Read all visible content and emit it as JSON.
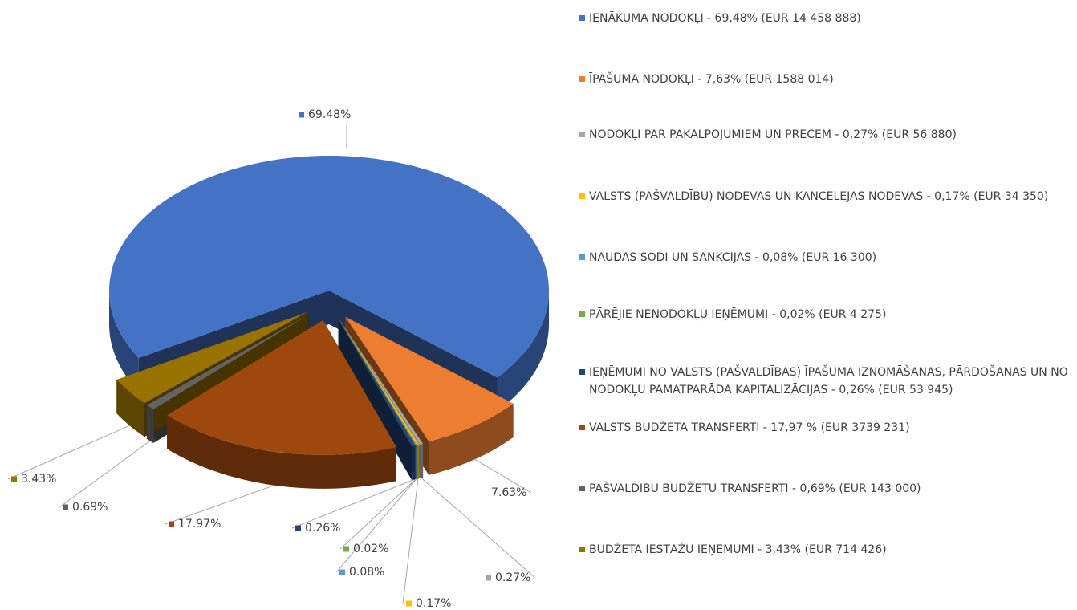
{
  "chart_data": {
    "type": "pie",
    "categories": [
      "IENĀKUMA NODOKĻI - 69,48% (EUR 14 458 888)",
      "ĪPAŠUMA NODOKĻI - 7,63% (EUR  1588 014)",
      "NODOKĻI PAR PAKALPOJUMIEM UN PRECĒM - 0,27% (EUR 56 880)",
      "VALSTS (PAŠVALDĪBU) NODEVAS UN KANCELEJAS NODEVAS - 0,17% (EUR 34 350)",
      "NAUDAS SODI UN SANKCIJAS - 0,08% (EUR 16 300)",
      "PĀRĒJIE NENODOKĻU IEŅĒMUMI - 0,02% (EUR 4 275)",
      "IEŅĒMUMI NO VALSTS (PAŠVALDĪBAS) ĪPAŠUMA IZNOMĀŠANAS, PĀRDOŠANAS UN NO NODOKĻU PAMATPARĀDA KAPITALIZĀCIJAS - 0,26% (EUR 53 945)",
      "VALSTS BUDŽETA TRANSFERTI - 17,97 % (EUR  3739 231)",
      "PAŠVALDĪBU BUDŽETU TRANSFERTI - 0,69% (EUR 143 000)",
      "BUDŽETA IESTĀŽU IEŅĒMUMI - 3,43% (EUR 714 426)"
    ],
    "values": [
      69.48,
      7.63,
      0.27,
      0.17,
      0.08,
      0.02,
      0.26,
      17.97,
      0.69,
      3.43
    ],
    "value_labels": [
      "69.48%",
      "7.63%",
      "0.27%",
      "0.17%",
      "0.08%",
      "0.02%",
      "0.26%",
      "17.97%",
      "0.69%",
      "3.43%"
    ],
    "colors": [
      "#4472c4",
      "#ed7d31",
      "#a5a5a5",
      "#ffc000",
      "#5b9bd5",
      "#70ad47",
      "#264478",
      "#9e480e",
      "#636363",
      "#997300"
    ],
    "legend": "right"
  }
}
